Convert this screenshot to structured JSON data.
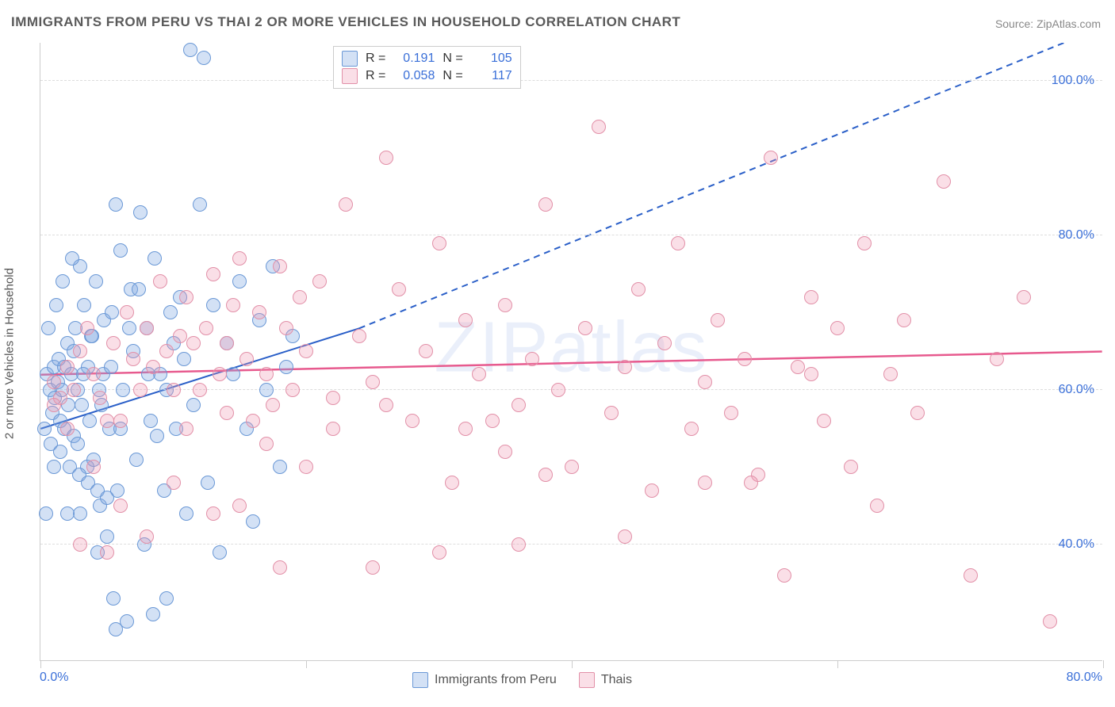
{
  "title": "IMMIGRANTS FROM PERU VS THAI 2 OR MORE VEHICLES IN HOUSEHOLD CORRELATION CHART",
  "source": "Source: ZipAtlas.com",
  "watermark": "ZIPatlas",
  "ylabel": "2 or more Vehicles in Household",
  "chart": {
    "type": "scatter",
    "xlim": [
      0,
      80
    ],
    "ylim": [
      25,
      105
    ],
    "xtick_positions": [
      0,
      20,
      40,
      60,
      80
    ],
    "xtick_labels": [
      "0.0%",
      "",
      "",
      "",
      "80.0%"
    ],
    "ytick_positions": [
      40,
      60,
      80,
      100
    ],
    "ytick_labels": [
      "40.0%",
      "60.0%",
      "80.0%",
      "100.0%"
    ],
    "grid_color": "#dddddd",
    "background_color": "#ffffff",
    "axis_color": "#cccccc",
    "tick_label_color": "#3a6fd8",
    "tick_fontsize": 16,
    "title_fontsize": 17,
    "marker_size": 18,
    "series": [
      {
        "name": "Immigrants from Peru",
        "fill_color": "rgba(130,170,225,0.35)",
        "stroke_color": "#6a98d6",
        "R": "0.191",
        "N": "105",
        "trend": {
          "x1": 0,
          "y1": 55,
          "x2_solid": 24,
          "y2_solid": 68,
          "x2_dash": 80,
          "y2_dash": 107,
          "color": "#2a5fc8",
          "width": 2
        },
        "points": [
          [
            0.5,
            62
          ],
          [
            0.7,
            60
          ],
          [
            0.9,
            57
          ],
          [
            1.0,
            63
          ],
          [
            1.1,
            59
          ],
          [
            1.3,
            61
          ],
          [
            1.4,
            64
          ],
          [
            1.5,
            56
          ],
          [
            1.6,
            60
          ],
          [
            1.8,
            63
          ],
          [
            1.8,
            55
          ],
          [
            2.0,
            66
          ],
          [
            2.1,
            58
          ],
          [
            2.3,
            62
          ],
          [
            2.5,
            65
          ],
          [
            2.5,
            54
          ],
          [
            2.6,
            68
          ],
          [
            2.8,
            53
          ],
          [
            2.8,
            60
          ],
          [
            3.0,
            76
          ],
          [
            3.0,
            44
          ],
          [
            3.1,
            58
          ],
          [
            3.3,
            71
          ],
          [
            3.5,
            50
          ],
          [
            3.6,
            63
          ],
          [
            3.7,
            56
          ],
          [
            3.8,
            67
          ],
          [
            4.0,
            51
          ],
          [
            4.2,
            74
          ],
          [
            4.4,
            60
          ],
          [
            4.5,
            45
          ],
          [
            4.7,
            62
          ],
          [
            4.8,
            69
          ],
          [
            5.0,
            41
          ],
          [
            5.2,
            55
          ],
          [
            5.4,
            70
          ],
          [
            5.5,
            33
          ],
          [
            5.7,
            84
          ],
          [
            5.8,
            47
          ],
          [
            6.0,
            78
          ],
          [
            6.2,
            60
          ],
          [
            6.5,
            30
          ],
          [
            6.8,
            73
          ],
          [
            7.0,
            65
          ],
          [
            7.2,
            51
          ],
          [
            7.5,
            83
          ],
          [
            7.8,
            40
          ],
          [
            8.0,
            68
          ],
          [
            8.3,
            56
          ],
          [
            8.6,
            77
          ],
          [
            9.0,
            62
          ],
          [
            9.3,
            47
          ],
          [
            9.5,
            33
          ],
          [
            9.8,
            70
          ],
          [
            10.2,
            55
          ],
          [
            10.5,
            72
          ],
          [
            10.8,
            64
          ],
          [
            11.0,
            44
          ],
          [
            11.3,
            104
          ],
          [
            11.5,
            58
          ],
          [
            12.0,
            84
          ],
          [
            12.3,
            103
          ],
          [
            12.6,
            48
          ],
          [
            13.0,
            71
          ],
          [
            13.5,
            39
          ],
          [
            14.0,
            66
          ],
          [
            14.5,
            62
          ],
          [
            15.0,
            74
          ],
          [
            15.5,
            55
          ],
          [
            16.0,
            43
          ],
          [
            16.5,
            69
          ],
          [
            17.0,
            60
          ],
          [
            17.5,
            76
          ],
          [
            18.0,
            50
          ],
          [
            18.5,
            63
          ],
          [
            19.0,
            67
          ],
          [
            0.4,
            44
          ],
          [
            1.0,
            50
          ],
          [
            2.0,
            44
          ],
          [
            4.3,
            39
          ],
          [
            0.6,
            68
          ],
          [
            1.2,
            71
          ],
          [
            1.7,
            74
          ],
          [
            2.4,
            77
          ],
          [
            3.2,
            62
          ],
          [
            3.9,
            67
          ],
          [
            4.6,
            58
          ],
          [
            5.3,
            63
          ],
          [
            6.0,
            55
          ],
          [
            6.7,
            68
          ],
          [
            7.4,
            73
          ],
          [
            8.1,
            62
          ],
          [
            8.8,
            54
          ],
          [
            9.5,
            60
          ],
          [
            10.0,
            66
          ],
          [
            0.3,
            55
          ],
          [
            0.8,
            53
          ],
          [
            1.5,
            52
          ],
          [
            2.2,
            50
          ],
          [
            2.9,
            49
          ],
          [
            3.6,
            48
          ],
          [
            4.3,
            47
          ],
          [
            5.0,
            46
          ],
          [
            5.7,
            29
          ],
          [
            8.5,
            31
          ]
        ]
      },
      {
        "name": "Thais",
        "fill_color": "rgba(240,150,175,0.30)",
        "stroke_color": "#e290a8",
        "R": "0.058",
        "N": "117",
        "trend": {
          "x1": 0,
          "y1": 62,
          "x2_solid": 80,
          "y2_solid": 65,
          "color": "#e75a8e",
          "width": 2.5
        },
        "points": [
          [
            1.0,
            61
          ],
          [
            1.5,
            59
          ],
          [
            2.0,
            63
          ],
          [
            2.5,
            60
          ],
          [
            3.0,
            65
          ],
          [
            3.5,
            68
          ],
          [
            4.0,
            62
          ],
          [
            4.5,
            59
          ],
          [
            5.0,
            56
          ],
          [
            5.5,
            66
          ],
          [
            6.0,
            56
          ],
          [
            6.5,
            70
          ],
          [
            7.0,
            64
          ],
          [
            7.5,
            60
          ],
          [
            8.0,
            68
          ],
          [
            8.5,
            63
          ],
          [
            9.0,
            74
          ],
          [
            9.5,
            65
          ],
          [
            10.0,
            60
          ],
          [
            10.5,
            67
          ],
          [
            11.0,
            72
          ],
          [
            11.5,
            66
          ],
          [
            12.0,
            60
          ],
          [
            12.5,
            68
          ],
          [
            13.0,
            75
          ],
          [
            13.5,
            62
          ],
          [
            14.0,
            66
          ],
          [
            14.5,
            71
          ],
          [
            15.0,
            77
          ],
          [
            15.5,
            64
          ],
          [
            16.0,
            56
          ],
          [
            16.5,
            70
          ],
          [
            17.0,
            62
          ],
          [
            17.5,
            58
          ],
          [
            18.0,
            76
          ],
          [
            18.5,
            68
          ],
          [
            19.0,
            60
          ],
          [
            19.5,
            72
          ],
          [
            20.0,
            65
          ],
          [
            21.0,
            74
          ],
          [
            22.0,
            59
          ],
          [
            23.0,
            84
          ],
          [
            24.0,
            67
          ],
          [
            25.0,
            61
          ],
          [
            26.0,
            90
          ],
          [
            27.0,
            73
          ],
          [
            28.0,
            56
          ],
          [
            29.0,
            65
          ],
          [
            30.0,
            79
          ],
          [
            31.0,
            48
          ],
          [
            32.0,
            69
          ],
          [
            33.0,
            62
          ],
          [
            34.0,
            56
          ],
          [
            35.0,
            71
          ],
          [
            36.0,
            40
          ],
          [
            37.0,
            64
          ],
          [
            38.0,
            84
          ],
          [
            39.0,
            60
          ],
          [
            40.0,
            50
          ],
          [
            41.0,
            68
          ],
          [
            42.0,
            94
          ],
          [
            43.0,
            57
          ],
          [
            44.0,
            63
          ],
          [
            45.0,
            73
          ],
          [
            46.0,
            47
          ],
          [
            47.0,
            66
          ],
          [
            48.0,
            79
          ],
          [
            49.0,
            55
          ],
          [
            50.0,
            61
          ],
          [
            51.0,
            69
          ],
          [
            52.0,
            57
          ],
          [
            53.0,
            64
          ],
          [
            54.0,
            49
          ],
          [
            55.0,
            90
          ],
          [
            56.0,
            36
          ],
          [
            57.0,
            63
          ],
          [
            58.0,
            72
          ],
          [
            59.0,
            56
          ],
          [
            60.0,
            68
          ],
          [
            61.0,
            50
          ],
          [
            62.0,
            79
          ],
          [
            63.0,
            45
          ],
          [
            64.0,
            62
          ],
          [
            65.0,
            69
          ],
          [
            66.0,
            57
          ],
          [
            68.0,
            87
          ],
          [
            70.0,
            36
          ],
          [
            72.0,
            64
          ],
          [
            74.0,
            72
          ],
          [
            76.0,
            30
          ],
          [
            3.0,
            40
          ],
          [
            5.0,
            39
          ],
          [
            15.0,
            45
          ],
          [
            18.0,
            37
          ],
          [
            25.0,
            37
          ],
          [
            30.0,
            39
          ],
          [
            35.0,
            52
          ],
          [
            38.0,
            49
          ],
          [
            20.0,
            50
          ],
          [
            13.0,
            44
          ],
          [
            10.0,
            48
          ],
          [
            8.0,
            41
          ],
          [
            6.0,
            45
          ],
          [
            4.0,
            50
          ],
          [
            2.0,
            55
          ],
          [
            1.0,
            58
          ],
          [
            11.0,
            55
          ],
          [
            14.0,
            57
          ],
          [
            17.0,
            53
          ],
          [
            22.0,
            55
          ],
          [
            26.0,
            58
          ],
          [
            32.0,
            55
          ],
          [
            36.0,
            58
          ],
          [
            44.0,
            41
          ],
          [
            50.0,
            48
          ],
          [
            53.5,
            48
          ],
          [
            58.0,
            62
          ]
        ]
      }
    ]
  },
  "stat_legend_labels": {
    "R": "R =",
    "N": "N ="
  },
  "bottom_legend": [
    {
      "swatch_fill": "rgba(130,170,225,0.35)",
      "swatch_stroke": "#6a98d6",
      "label": "Immigrants from Peru"
    },
    {
      "swatch_fill": "rgba(240,150,175,0.30)",
      "swatch_stroke": "#e290a8",
      "label": "Thais"
    }
  ]
}
